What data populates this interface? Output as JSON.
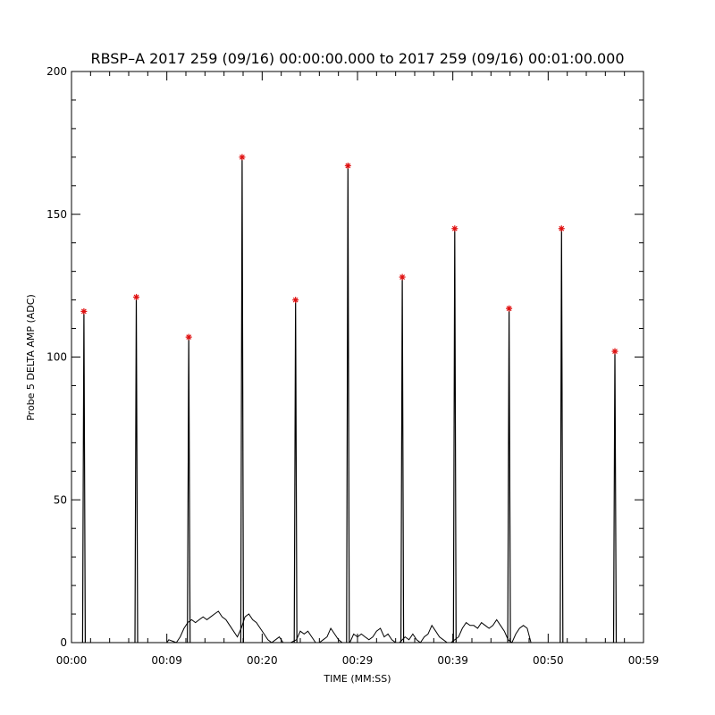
{
  "chart_data": {
    "type": "line",
    "title": "RBSP–A 2017 259 (09/16) 00:00:00.000 to 2017 259 (09/16) 00:01:00.000",
    "xlabel": "TIME (MM:SS)",
    "ylabel": "Probe 5 DELTA AMP (ADC)",
    "xlim": [
      0,
      60
    ],
    "ylim": [
      0,
      200
    ],
    "x_tick_values": [
      0,
      10,
      20,
      30,
      40,
      50,
      60
    ],
    "x_tick_labels": [
      "00:00",
      "00:09",
      "00:20",
      "00:29",
      "00:39",
      "00:50",
      "00:59"
    ],
    "y_tick_values": [
      0,
      50,
      100,
      150,
      200
    ],
    "y_tick_labels": [
      "0",
      "50",
      "100",
      "150",
      "200"
    ],
    "grid": false,
    "series": [
      {
        "role": "peak-markers",
        "marker": "asterisk",
        "color": "#e01010",
        "x": [
          1.3,
          6.8,
          12.3,
          17.9,
          23.5,
          29.0,
          34.7,
          40.2,
          45.9,
          51.4,
          57.0
        ],
        "y": [
          116,
          121,
          107,
          170,
          120,
          167,
          128,
          145,
          117,
          145,
          102
        ]
      },
      {
        "role": "peak-lines",
        "color": "#000000",
        "x": [
          1.3,
          6.8,
          12.3,
          17.9,
          23.5,
          29.0,
          34.7,
          40.2,
          45.9,
          51.4,
          57.0
        ],
        "y": [
          116,
          121,
          107,
          170,
          120,
          167,
          128,
          145,
          117,
          145,
          102
        ]
      },
      {
        "role": "baseline-trace",
        "color": "#000000",
        "x": [
          10.0,
          10.2,
          10.6,
          11.0,
          11.4,
          11.8,
          12.2,
          12.6,
          13.0,
          13.4,
          13.8,
          14.2,
          14.6,
          15.0,
          15.4,
          15.8,
          16.2,
          16.6,
          17.0,
          17.4,
          17.8,
          18.2,
          18.6,
          19.0,
          19.4,
          19.8,
          20.2,
          20.6,
          21.0,
          21.4,
          21.8,
          22.2,
          22.6,
          23.0,
          23.6,
          24.0,
          24.4,
          24.8,
          25.2,
          25.6,
          26.0,
          26.4,
          26.8,
          27.2,
          27.6,
          28.0,
          28.4,
          29.2,
          29.6,
          30.0,
          30.4,
          30.8,
          31.2,
          31.6,
          32.0,
          32.4,
          32.8,
          33.2,
          33.6,
          34.0,
          34.4,
          35.0,
          35.4,
          35.8,
          36.2,
          36.6,
          37.0,
          37.4,
          37.8,
          38.2,
          38.6,
          39.0,
          39.4,
          39.8,
          40.6,
          41.0,
          41.4,
          41.8,
          42.2,
          42.6,
          43.0,
          43.4,
          43.8,
          44.2,
          44.6,
          45.0,
          45.4,
          45.8,
          46.2,
          46.6,
          47.0,
          47.4,
          47.8,
          48.2
        ],
        "y": [
          0,
          1,
          0.5,
          0,
          2,
          5,
          7,
          8,
          7,
          8,
          9,
          8,
          9,
          10,
          11,
          9,
          8,
          6,
          4,
          2,
          5,
          9,
          10,
          8,
          7,
          5,
          3,
          1,
          0,
          1,
          2,
          0,
          0,
          0,
          1,
          4,
          3,
          4,
          2,
          0,
          0,
          1,
          2,
          5,
          3,
          1,
          0,
          0,
          3,
          2,
          3,
          2,
          1,
          2,
          4,
          5,
          2,
          3,
          1,
          0,
          0,
          2,
          1,
          3,
          1,
          0,
          2,
          3,
          6,
          4,
          2,
          1,
          0,
          0,
          2,
          5,
          7,
          6,
          6,
          5,
          7,
          6,
          5,
          6,
          8,
          6,
          4,
          1,
          0,
          3,
          5,
          6,
          5,
          0
        ]
      }
    ]
  }
}
